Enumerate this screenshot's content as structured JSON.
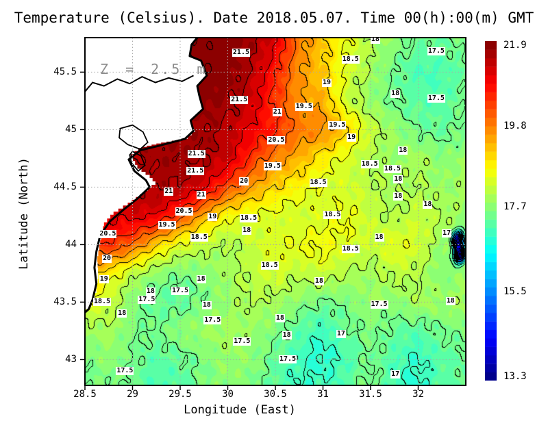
{
  "title": "Temperature (Celsius). Date 2018.05.07. Time 00(h):00(m) GMT",
  "annotation": "Z = 2.5 m",
  "axes": {
    "x": {
      "label": "Longitude (East)",
      "ticks": [
        28.5,
        29,
        29.5,
        30,
        30.5,
        31,
        31.5,
        32
      ],
      "range": [
        28.5,
        32.5
      ]
    },
    "y": {
      "label": "Latitude (North)",
      "ticks": [
        43,
        43.5,
        44,
        44.5,
        45,
        45.5
      ],
      "range": [
        42.78,
        45.8
      ]
    }
  },
  "colorbar": {
    "min": 13.3,
    "max": 21.9,
    "levels": 40,
    "tick_values": [
      21.9,
      19.8,
      17.7,
      15.5,
      13.3
    ],
    "tick_labels": [
      "21.9",
      "19.8",
      "17.7",
      "15.5",
      "13.3"
    ],
    "colormap": "jet",
    "bottom_color": "#000080",
    "top_color": "#800000"
  },
  "grid_style": {
    "line_color": "#aaaaaa",
    "frame_color": "#000000"
  },
  "chart_data": {
    "type": "heatmap",
    "title": "Temperature (Celsius). Date 2018.05.07. Time 00(h):00(m) GMT",
    "xlabel": "Longitude (East)",
    "ylabel": "Latitude (North)",
    "units": "Celsius",
    "contour_interval": 0.5,
    "lon": [
      28.5,
      28.75,
      29.0,
      29.25,
      29.5,
      29.75,
      30.0,
      30.25,
      30.5,
      30.75,
      31.0,
      31.25,
      31.5,
      31.75,
      32.0,
      32.25,
      32.5
    ],
    "lat": [
      45.75,
      45.5,
      45.25,
      45.0,
      44.75,
      44.5,
      44.25,
      44.0,
      43.75,
      43.5,
      43.25,
      43.0,
      42.75
    ],
    "temperature": [
      [
        21.7,
        21.7,
        21.8,
        21.8,
        21.9,
        21.9,
        21.8,
        21.6,
        21.0,
        19.8,
        19.1,
        18.5,
        18.0,
        17.7,
        17.4,
        17.4,
        17.6
      ],
      [
        21.6,
        21.7,
        21.8,
        21.9,
        21.9,
        21.9,
        21.8,
        21.4,
        20.6,
        19.6,
        19.1,
        18.4,
        17.9,
        17.5,
        17.2,
        17.2,
        17.4
      ],
      [
        21.5,
        21.6,
        21.7,
        21.8,
        21.8,
        21.8,
        21.6,
        21.2,
        20.4,
        19.6,
        19.3,
        18.3,
        17.8,
        17.5,
        17.3,
        17.3,
        17.5
      ],
      [
        21.4,
        21.5,
        21.6,
        21.7,
        21.7,
        21.6,
        21.4,
        20.9,
        20.5,
        19.8,
        19.6,
        19.0,
        18.2,
        17.8,
        17.5,
        17.4,
        17.6
      ],
      [
        21.3,
        21.4,
        21.5,
        21.6,
        21.6,
        21.5,
        21.2,
        20.4,
        19.7,
        19.3,
        18.8,
        18.4,
        18.0,
        17.8,
        17.9,
        17.7,
        17.8
      ],
      [
        21.0,
        21.2,
        21.4,
        21.5,
        21.4,
        21.0,
        20.2,
        19.5,
        19.0,
        18.7,
        18.4,
        18.3,
        18.1,
        17.9,
        18.0,
        17.8,
        17.9
      ],
      [
        20.8,
        21.0,
        21.1,
        20.9,
        20.2,
        19.4,
        18.7,
        18.5,
        18.4,
        18.3,
        18.4,
        18.5,
        18.2,
        18.0,
        18.2,
        18.0,
        17.8
      ],
      [
        20.3,
        20.4,
        19.9,
        19.1,
        18.5,
        18.2,
        18.0,
        18.2,
        18.4,
        18.5,
        18.6,
        18.4,
        18.2,
        18.4,
        18.3,
        17.8,
        17.9
      ],
      [
        19.2,
        18.8,
        18.2,
        17.8,
        17.6,
        17.7,
        17.9,
        18.1,
        18.3,
        18.1,
        18.2,
        18.0,
        17.9,
        18.1,
        18.0,
        17.7,
        17.8
      ],
      [
        18.5,
        18.2,
        17.7,
        17.4,
        17.4,
        17.6,
        17.8,
        18.0,
        17.9,
        17.7,
        17.5,
        17.6,
        17.8,
        17.7,
        17.9,
        17.8,
        17.9
      ],
      [
        17.8,
        17.9,
        17.6,
        17.5,
        17.7,
        17.8,
        17.9,
        17.8,
        17.6,
        17.3,
        17.1,
        17.4,
        17.6,
        17.4,
        17.3,
        17.5,
        17.6
      ],
      [
        17.6,
        17.7,
        17.5,
        17.3,
        17.4,
        17.6,
        17.8,
        17.7,
        17.4,
        17.1,
        16.9,
        17.2,
        17.5,
        17.2,
        17.0,
        17.3,
        17.4
      ],
      [
        17.5,
        17.6,
        17.4,
        17.2,
        17.3,
        17.6,
        17.7,
        17.6,
        17.3,
        17.0,
        17.1,
        17.3,
        17.6,
        17.1,
        16.9,
        17.3,
        17.4
      ]
    ],
    "cold_eddies": [
      {
        "lon": 32.42,
        "lat": 44.04,
        "depress": 4.3,
        "rlon": 0.06,
        "rlat": 0.075
      },
      {
        "lon": 32.44,
        "lat": 43.91,
        "depress": 4.8,
        "rlon": 0.055,
        "rlat": 0.065
      }
    ],
    "contour_labels": [
      [
        30.14,
        45.67,
        "21.5"
      ],
      [
        31.29,
        45.61,
        "18.5"
      ],
      [
        32.19,
        45.68,
        "17.5"
      ],
      [
        31.55,
        45.78,
        "18"
      ],
      [
        30.12,
        45.26,
        "21.5"
      ],
      [
        30.52,
        45.15,
        "21"
      ],
      [
        30.8,
        45.2,
        "19.5"
      ],
      [
        31.04,
        45.41,
        "19"
      ],
      [
        31.76,
        45.31,
        "18"
      ],
      [
        32.19,
        45.27,
        "17.5"
      ],
      [
        31.15,
        45.04,
        "19.5"
      ],
      [
        31.3,
        44.93,
        "19"
      ],
      [
        30.51,
        44.91,
        "20.5"
      ],
      [
        31.84,
        44.82,
        "18"
      ],
      [
        29.67,
        44.79,
        "21.5"
      ],
      [
        29.66,
        44.64,
        "21.5"
      ],
      [
        30.47,
        44.68,
        "19.5"
      ],
      [
        30.17,
        44.55,
        "20"
      ],
      [
        31.49,
        44.7,
        "18.5"
      ],
      [
        31.73,
        44.66,
        "18.5"
      ],
      [
        31.79,
        44.57,
        "18"
      ],
      [
        30.95,
        44.54,
        "18.5"
      ],
      [
        29.38,
        44.46,
        "21"
      ],
      [
        29.72,
        44.43,
        "21"
      ],
      [
        29.54,
        44.29,
        "20.5"
      ],
      [
        29.84,
        44.24,
        "19"
      ],
      [
        30.22,
        44.23,
        "18.5"
      ],
      [
        30.2,
        44.12,
        "18"
      ],
      [
        31.1,
        44.26,
        "18.5"
      ],
      [
        31.79,
        44.42,
        "18"
      ],
      [
        32.1,
        44.35,
        "18"
      ],
      [
        28.74,
        44.09,
        "20.5"
      ],
      [
        29.36,
        44.17,
        "19.5"
      ],
      [
        29.7,
        44.06,
        "18.5"
      ],
      [
        30.44,
        43.82,
        "18.5"
      ],
      [
        31.29,
        43.96,
        "18.5"
      ],
      [
        31.59,
        44.06,
        "18"
      ],
      [
        32.3,
        44.1,
        "17"
      ],
      [
        28.73,
        43.88,
        "20"
      ],
      [
        29.72,
        43.7,
        "18"
      ],
      [
        30.96,
        43.68,
        "18"
      ],
      [
        28.7,
        43.7,
        "19"
      ],
      [
        29.15,
        43.52,
        "17.5"
      ],
      [
        29.5,
        43.6,
        "17.5"
      ],
      [
        29.19,
        43.59,
        "18"
      ],
      [
        28.68,
        43.5,
        "18.5"
      ],
      [
        28.89,
        43.4,
        "18"
      ],
      [
        29.78,
        43.47,
        "18"
      ],
      [
        29.84,
        43.34,
        "17.5"
      ],
      [
        31.59,
        43.48,
        "17.5"
      ],
      [
        32.34,
        43.51,
        "18"
      ],
      [
        30.15,
        43.16,
        "17.5"
      ],
      [
        30.55,
        43.36,
        "18"
      ],
      [
        30.62,
        43.21,
        "18"
      ],
      [
        31.19,
        43.22,
        "17"
      ],
      [
        30.63,
        43.0,
        "17.5"
      ],
      [
        31.76,
        42.87,
        "17"
      ],
      [
        28.92,
        42.9,
        "17.5"
      ]
    ]
  },
  "map": {
    "land_color": "#ffffff",
    "coast_color": "#000000",
    "stair_lat_threshold": 45.06,
    "mask_edge": [
      [
        29.7,
        45.82
      ],
      [
        29.62,
        45.74
      ],
      [
        29.6,
        45.64
      ],
      [
        29.72,
        45.6
      ],
      [
        29.78,
        45.47
      ],
      [
        29.68,
        45.38
      ],
      [
        29.7,
        45.3
      ],
      [
        29.74,
        45.18
      ],
      [
        29.61,
        45.08
      ],
      [
        29.66,
        44.98
      ],
      [
        29.58,
        44.92
      ],
      [
        29.3,
        44.88
      ],
      [
        29.1,
        44.84
      ],
      [
        28.98,
        44.76
      ],
      [
        29.05,
        44.66
      ],
      [
        29.18,
        44.58
      ],
      [
        29.24,
        44.52
      ],
      [
        29.12,
        44.44
      ],
      [
        28.95,
        44.34
      ],
      [
        28.8,
        44.26
      ],
      [
        28.7,
        44.16
      ],
      [
        28.66,
        44.0
      ],
      [
        28.63,
        43.85
      ],
      [
        28.64,
        43.7
      ],
      [
        28.62,
        43.58
      ],
      [
        28.57,
        43.46
      ],
      [
        28.5,
        43.42
      ]
    ],
    "coastline": [
      [
        29.7,
        45.82
      ],
      [
        29.62,
        45.74
      ],
      [
        29.6,
        45.64
      ],
      [
        29.72,
        45.6
      ],
      [
        29.78,
        45.47
      ],
      [
        29.68,
        45.38
      ],
      [
        29.7,
        45.3
      ],
      [
        29.74,
        45.18
      ],
      [
        29.61,
        45.08
      ],
      [
        29.64,
        44.99
      ],
      [
        29.55,
        44.92
      ],
      [
        29.28,
        44.86
      ],
      [
        29.08,
        44.82
      ],
      [
        28.96,
        44.74
      ],
      [
        29.02,
        44.64
      ],
      [
        29.14,
        44.56
      ],
      [
        29.18,
        44.5
      ],
      [
        29.05,
        44.4
      ],
      [
        28.9,
        44.3
      ],
      [
        28.76,
        44.2
      ],
      [
        28.66,
        44.08
      ],
      [
        28.62,
        43.94
      ],
      [
        28.6,
        43.8
      ],
      [
        28.62,
        43.66
      ],
      [
        28.58,
        43.52
      ],
      [
        28.54,
        43.44
      ],
      [
        28.5,
        43.41
      ]
    ],
    "river": [
      [
        29.64,
        45.47
      ],
      [
        29.52,
        45.42
      ],
      [
        29.38,
        45.45
      ],
      [
        29.24,
        45.41
      ],
      [
        29.1,
        45.46
      ],
      [
        28.97,
        45.4
      ],
      [
        28.84,
        45.44
      ],
      [
        28.7,
        45.38
      ],
      [
        28.58,
        45.41
      ],
      [
        28.5,
        45.33
      ]
    ],
    "lagoons": [
      [
        [
          28.87,
          45.01
        ],
        [
          29.0,
          45.04
        ],
        [
          29.11,
          44.98
        ],
        [
          29.16,
          44.89
        ],
        [
          29.08,
          44.83
        ],
        [
          28.95,
          44.87
        ],
        [
          28.86,
          44.93
        ]
      ],
      [
        [
          29.0,
          44.81
        ],
        [
          29.09,
          44.77
        ],
        [
          29.13,
          44.69
        ],
        [
          29.06,
          44.64
        ],
        [
          28.99,
          44.71
        ],
        [
          28.97,
          44.78
        ]
      ]
    ]
  }
}
